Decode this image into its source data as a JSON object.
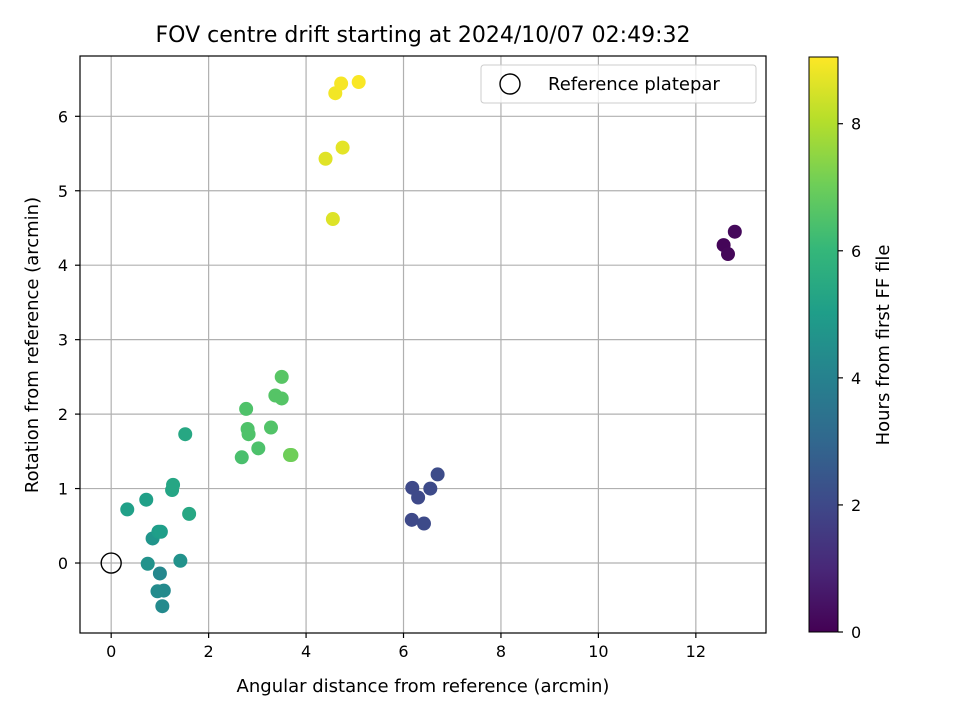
{
  "chart_data": {
    "type": "scatter",
    "title": "FOV centre drift starting at 2024/10/07 02:49:32",
    "xlabel": "Angular distance from reference (arcmin)",
    "ylabel": "Rotation from reference (arcmin)",
    "xlim": [
      -0.64,
      13.44
    ],
    "ylim": [
      -0.94,
      6.81
    ],
    "xticks": [
      "0",
      "2",
      "4",
      "6",
      "8",
      "10",
      "12"
    ],
    "xtick_values": [
      0,
      2,
      4,
      6,
      8,
      10,
      12
    ],
    "yticks": [
      "0",
      "1",
      "2",
      "3",
      "4",
      "5",
      "6"
    ],
    "ytick_values": [
      0,
      1,
      2,
      3,
      4,
      5,
      6
    ],
    "grid": true,
    "legend": {
      "placement": "upper-right",
      "entries": [
        "Reference platepar"
      ]
    },
    "reference_point": {
      "x": 0,
      "y": 0
    },
    "colorbar": {
      "label": "Hours from first FF file",
      "colormap": "viridis",
      "range": [
        0,
        9.05
      ],
      "ticks": [
        "0",
        "2",
        "4",
        "6",
        "8"
      ],
      "tick_values": [
        0,
        2,
        4,
        6,
        8
      ]
    },
    "colormap_stops": [
      "#440154",
      "#482878",
      "#3e4989",
      "#31688e",
      "#26828e",
      "#1f9e89",
      "#35b779",
      "#6ece58",
      "#b5de2b",
      "#fde725"
    ],
    "points": [
      {
        "x": 12.57,
        "y": 4.27,
        "c": 0.1
      },
      {
        "x": 12.66,
        "y": 4.15,
        "c": 0.15
      },
      {
        "x": 12.8,
        "y": 4.45,
        "c": 0.2
      },
      {
        "x": 6.18,
        "y": 1.01,
        "c": 2.0
      },
      {
        "x": 6.55,
        "y": 1.0,
        "c": 2.05
      },
      {
        "x": 6.3,
        "y": 0.88,
        "c": 2.0
      },
      {
        "x": 6.7,
        "y": 1.19,
        "c": 2.1
      },
      {
        "x": 6.17,
        "y": 0.58,
        "c": 2.0
      },
      {
        "x": 6.42,
        "y": 0.53,
        "c": 2.05
      },
      {
        "x": 1.0,
        "y": -0.14,
        "c": 4.2
      },
      {
        "x": 1.08,
        "y": -0.37,
        "c": 4.3
      },
      {
        "x": 0.95,
        "y": -0.38,
        "c": 4.35
      },
      {
        "x": 1.05,
        "y": -0.58,
        "c": 4.3
      },
      {
        "x": 0.75,
        "y": -0.01,
        "c": 4.6
      },
      {
        "x": 0.85,
        "y": 0.33,
        "c": 4.7
      },
      {
        "x": 1.42,
        "y": 0.03,
        "c": 4.6
      },
      {
        "x": 0.97,
        "y": 0.42,
        "c": 5.0
      },
      {
        "x": 1.02,
        "y": 0.42,
        "c": 5.05
      },
      {
        "x": 0.72,
        "y": 0.85,
        "c": 5.1
      },
      {
        "x": 0.33,
        "y": 0.72,
        "c": 5.1
      },
      {
        "x": 1.25,
        "y": 0.98,
        "c": 5.3
      },
      {
        "x": 1.27,
        "y": 1.05,
        "c": 5.35
      },
      {
        "x": 1.6,
        "y": 0.66,
        "c": 5.4
      },
      {
        "x": 1.52,
        "y": 1.73,
        "c": 5.4
      },
      {
        "x": 2.68,
        "y": 1.42,
        "c": 6.4
      },
      {
        "x": 3.02,
        "y": 1.54,
        "c": 6.45
      },
      {
        "x": 2.82,
        "y": 1.73,
        "c": 6.5
      },
      {
        "x": 2.8,
        "y": 1.8,
        "c": 6.5
      },
      {
        "x": 3.28,
        "y": 1.82,
        "c": 6.55
      },
      {
        "x": 2.77,
        "y": 2.07,
        "c": 6.5
      },
      {
        "x": 3.37,
        "y": 2.25,
        "c": 6.6
      },
      {
        "x": 3.5,
        "y": 2.21,
        "c": 6.6
      },
      {
        "x": 3.5,
        "y": 2.5,
        "c": 6.65
      },
      {
        "x": 3.67,
        "y": 1.45,
        "c": 7.0
      },
      {
        "x": 3.7,
        "y": 1.45,
        "c": 7.05
      },
      {
        "x": 4.55,
        "y": 4.62,
        "c": 8.6
      },
      {
        "x": 4.4,
        "y": 5.43,
        "c": 8.65
      },
      {
        "x": 4.75,
        "y": 5.58,
        "c": 8.7
      },
      {
        "x": 4.6,
        "y": 6.31,
        "c": 8.9
      },
      {
        "x": 4.72,
        "y": 6.44,
        "c": 8.95
      },
      {
        "x": 5.08,
        "y": 6.46,
        "c": 9.0
      }
    ]
  }
}
